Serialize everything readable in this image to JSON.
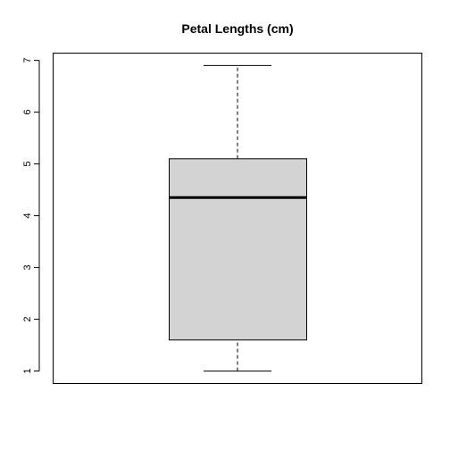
{
  "chart_data": {
    "type": "boxplot",
    "title": "Petal Lengths (cm)",
    "xlabel": "",
    "ylabel": "",
    "ylim": [
      0.76,
      7.14
    ],
    "yticks": [
      1,
      2,
      3,
      4,
      5,
      6,
      7
    ],
    "box": {
      "min": 1.0,
      "q1": 1.6,
      "median": 4.35,
      "q3": 5.1,
      "max": 6.9
    },
    "colors": {
      "box_fill": "#d3d3d3",
      "stroke": "#000000"
    },
    "grid": false,
    "legend": "none"
  }
}
